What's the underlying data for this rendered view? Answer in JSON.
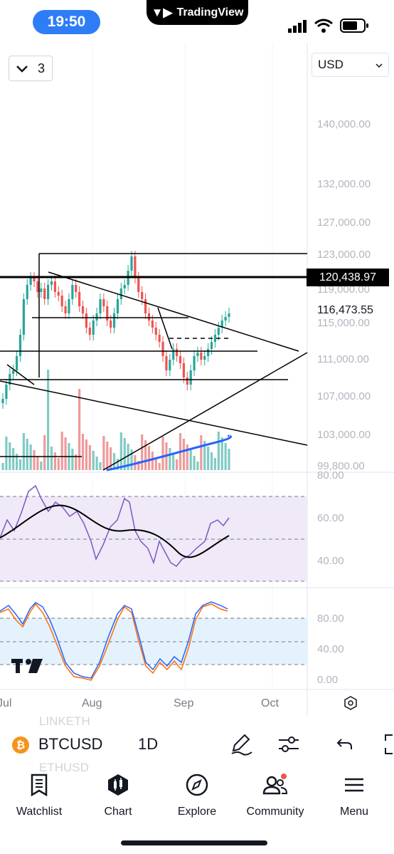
{
  "status_bar": {
    "time": "19:50",
    "app_name": "TradingView"
  },
  "toolbar": {
    "interval_count": "3",
    "currency": "USD"
  },
  "price_axis": {
    "labels": [
      "140,000.00",
      "132,000.00",
      "127,000.00",
      "123,000.00",
      "119,000.00",
      "115,000.00",
      "111,000.00",
      "107,000.00",
      "103,000.00",
      "99,800.00"
    ],
    "last_price": "120,438.97",
    "current_price": "116,473.55"
  },
  "rsi_axis": {
    "labels": [
      "80.00",
      "60.00",
      "40.00"
    ]
  },
  "stoch_axis": {
    "labels": [
      "80.00",
      "40.00",
      "0.00"
    ]
  },
  "time_axis": {
    "labels": [
      "Jul",
      "Aug",
      "Sep",
      "Oct"
    ]
  },
  "symbol_bar": {
    "symbol": "BTCUSD",
    "interval": "1D",
    "ghost_above": "LINKETH",
    "ghost_below": "ETHUSD"
  },
  "bottom_nav": {
    "tabs": [
      {
        "label": "Watchlist",
        "icon": "watchlist-icon"
      },
      {
        "label": "Chart",
        "icon": "chart-icon"
      },
      {
        "label": "Explore",
        "icon": "explore-icon"
      },
      {
        "label": "Community",
        "icon": "community-icon"
      },
      {
        "label": "Menu",
        "icon": "menu-icon"
      }
    ]
  },
  "colors": {
    "accent": "#2f7df6",
    "up": "#26a69a",
    "down": "#ef5350",
    "rsi_band": "#efe9f8",
    "stoch_band": "#e3f2fd",
    "bitcoin": "#f7931a"
  }
}
